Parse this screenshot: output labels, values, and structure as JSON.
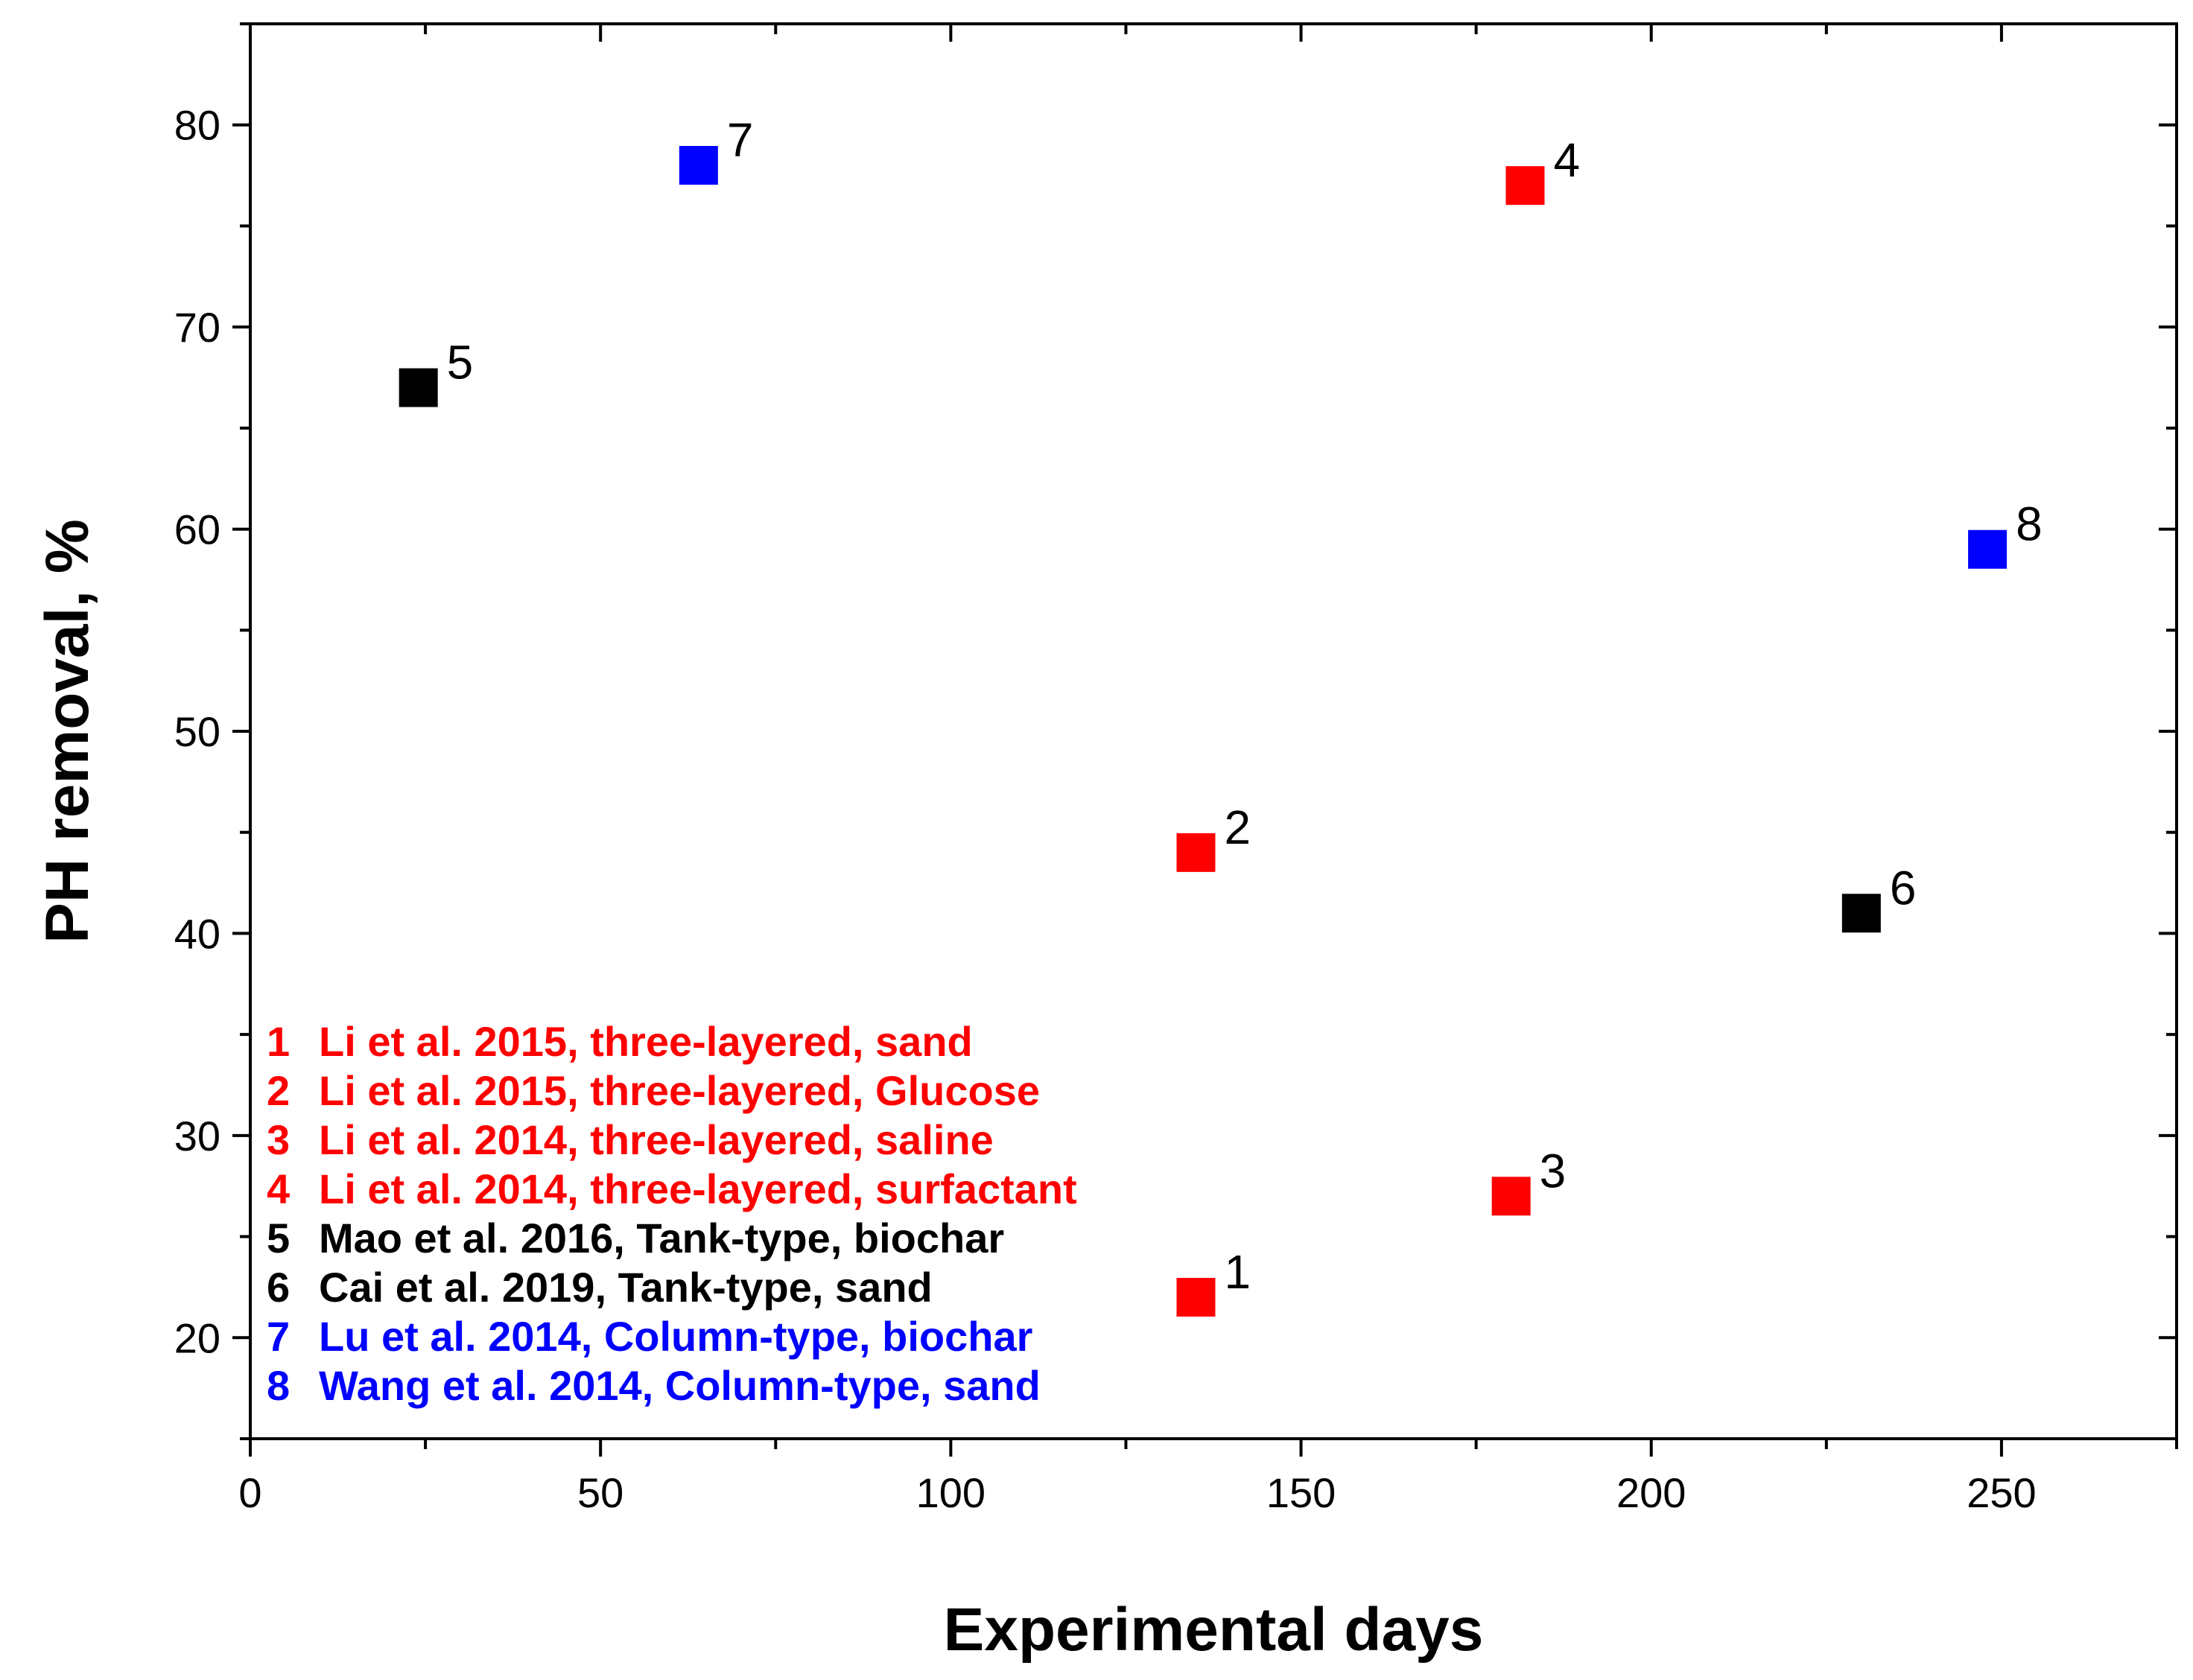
{
  "chart_data": {
    "type": "scatter",
    "title": "",
    "xlabel": "Experimental days",
    "ylabel": "PH removal, %",
    "xlim": [
      0,
      275
    ],
    "ylim": [
      15,
      85
    ],
    "xticks": [
      0,
      50,
      100,
      150,
      200,
      250
    ],
    "yticks": [
      20,
      30,
      40,
      50,
      60,
      70,
      80
    ],
    "grid": false,
    "legend_position": "bottom-left",
    "marker": "square",
    "colors": {
      "red": "#ff0000",
      "black": "#000000",
      "blue": "#0000ff"
    },
    "points": [
      {
        "id": "1",
        "x": 135,
        "y": 22,
        "color": "#ff0000"
      },
      {
        "id": "2",
        "x": 135,
        "y": 44,
        "color": "#ff0000"
      },
      {
        "id": "3",
        "x": 180,
        "y": 27,
        "color": "#ff0000"
      },
      {
        "id": "4",
        "x": 182,
        "y": 77,
        "color": "#ff0000"
      },
      {
        "id": "5",
        "x": 24,
        "y": 67,
        "color": "#000000"
      },
      {
        "id": "6",
        "x": 230,
        "y": 41,
        "color": "#000000"
      },
      {
        "id": "7",
        "x": 64,
        "y": 78,
        "color": "#0000ff"
      },
      {
        "id": "8",
        "x": 248,
        "y": 59,
        "color": "#0000ff"
      }
    ],
    "legend": [
      {
        "num": "1",
        "text": "Li et al. 2015, three-layered, sand",
        "color": "#ff0000"
      },
      {
        "num": "2",
        "text": "Li et al. 2015, three-layered, Glucose",
        "color": "#ff0000"
      },
      {
        "num": "3",
        "text": "Li et al. 2014, three-layered, saline",
        "color": "#ff0000"
      },
      {
        "num": "4",
        "text": "Li et al. 2014, three-layered, surfactant",
        "color": "#ff0000"
      },
      {
        "num": "5",
        "text": "Mao et al. 2016, Tank-type, biochar",
        "color": "#000000"
      },
      {
        "num": "6",
        "text": "Cai et al. 2019, Tank-type, sand",
        "color": "#000000"
      },
      {
        "num": "7",
        "text": "Lu et al. 2014, Column-type, biochar",
        "color": "#0000ff"
      },
      {
        "num": "8",
        "text": "Wang et al. 2014, Column-type, sand",
        "color": "#0000ff"
      }
    ]
  }
}
